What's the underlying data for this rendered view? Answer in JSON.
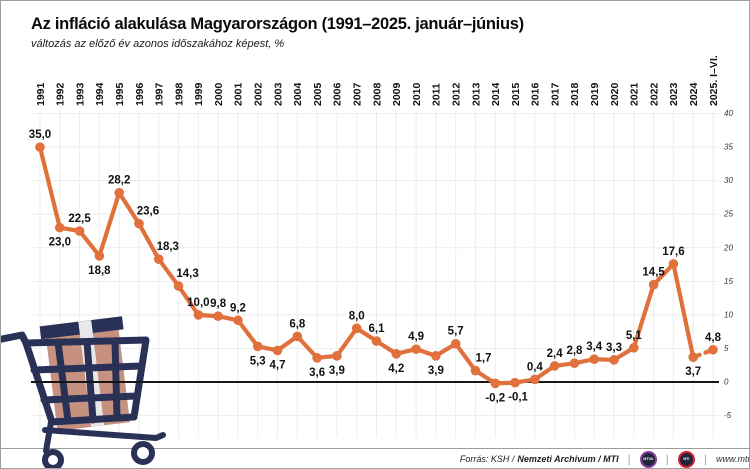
{
  "chart_data": {
    "type": "line",
    "title": "Az infláció alakulása Magyarországon (1991–2025. január–június)",
    "subtitle": "változás az előző év azonos időszakához képest, %",
    "categories": [
      "1991",
      "1992",
      "1993",
      "1994",
      "1995",
      "1996",
      "1997",
      "1998",
      "1999",
      "2000",
      "2001",
      "2002",
      "2003",
      "2004",
      "2005",
      "2006",
      "2007",
      "2008",
      "2009",
      "2010",
      "2011",
      "2012",
      "2013",
      "2014",
      "2015",
      "2016",
      "2017",
      "2018",
      "2019",
      "2020",
      "2021",
      "2022",
      "2023",
      "2024",
      "2025. I–VI."
    ],
    "values": [
      35.0,
      23.0,
      22.5,
      18.8,
      28.2,
      23.6,
      18.3,
      14.3,
      10.0,
      9.8,
      9.2,
      5.3,
      4.7,
      6.8,
      3.6,
      3.9,
      8.0,
      6.1,
      4.2,
      4.9,
      3.9,
      5.7,
      1.7,
      -0.2,
      -0.1,
      0.4,
      2.4,
      2.8,
      3.4,
      3.3,
      5.1,
      14.5,
      17.6,
      3.7,
      4.8
    ],
    "value_labels": [
      "35,0",
      "23,0",
      "22,5",
      "18,8",
      "28,2",
      "23,6",
      "18,3",
      "14,3",
      "10,0",
      "9,8",
      "9,2",
      "5,3",
      "4,7",
      "6,8",
      "3,6",
      "3,9",
      "8,0",
      "6,1",
      "4,2",
      "4,9",
      "3,9",
      "5,7",
      "1,7",
      "-0,2",
      "-0,1",
      "0,4",
      "2,4",
      "2,8",
      "3,4",
      "3,3",
      "5,1",
      "14,5",
      "17,6",
      "3,7",
      "4,8"
    ],
    "yticks": [
      40,
      35,
      30,
      25,
      20,
      15,
      10,
      5,
      0,
      -5
    ],
    "ylim": [
      -5,
      40
    ],
    "xlabel": "",
    "ylabel": "",
    "grid": true,
    "x_axis_position": "top-rotated-90",
    "y_axis_position": "right",
    "zero_line": true,
    "last_segment_dashed": true,
    "line_color": "#E0703C",
    "label_pos": [
      "above",
      "below",
      "above",
      "below",
      "above",
      "above",
      "above",
      "above",
      "above",
      "above",
      "above",
      "below",
      "below",
      "above",
      "below",
      "below",
      "above",
      "above",
      "below",
      "above",
      "below",
      "above",
      "above",
      "below",
      "below",
      "above",
      "above",
      "above",
      "above",
      "above",
      "above",
      "above",
      "above",
      "below",
      "above"
    ],
    "label_dx": [
      0,
      0,
      0,
      0,
      0,
      9,
      9,
      9,
      0,
      0,
      0,
      0,
      0,
      0,
      0,
      0,
      0,
      0,
      0,
      0,
      0,
      0,
      8,
      0,
      3,
      0,
      0,
      0,
      0,
      0,
      0,
      0,
      0,
      0,
      0
    ]
  },
  "footer": {
    "source_prefix": "Forrás: KSH /",
    "source_bold": "Nemzeti Archivum / MTI",
    "pipe": "|",
    "mtva_label": "MTVA",
    "mti_label": "MTI",
    "website": "www.mti.hu"
  },
  "colors": {
    "line": "#E0703C",
    "cart_navy": "#2A3157",
    "box_tan": "#C79180",
    "box_stripe": "#E8E8E8",
    "logo_purple": "#8A3A9C",
    "logo_red": "#D6202F",
    "grid": "#EDEDED"
  }
}
